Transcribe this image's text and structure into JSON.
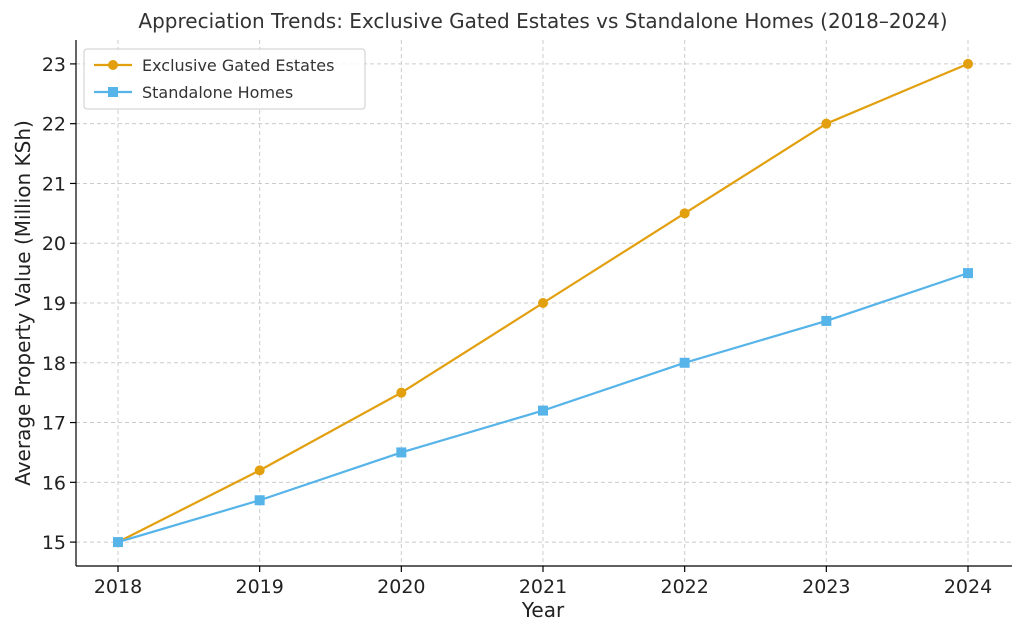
{
  "chart_data": {
    "type": "line",
    "title": "Appreciation Trends: Exclusive Gated Estates vs Standalone Homes (2018–2024)",
    "xlabel": "Year",
    "ylabel": "Average Property Value (Million KSh)",
    "categories": [
      "2018",
      "2019",
      "2020",
      "2021",
      "2022",
      "2023",
      "2024"
    ],
    "ylim": [
      14.6,
      23.4
    ],
    "yticks": [
      15,
      16,
      17,
      18,
      19,
      20,
      21,
      22,
      23
    ],
    "grid": true,
    "legend_position": "top-left",
    "series": [
      {
        "name": "Exclusive Gated Estates",
        "color": "#E29F0E",
        "marker": "circle",
        "values": [
          15.0,
          16.2,
          17.5,
          19.0,
          20.5,
          22.0,
          23.0
        ]
      },
      {
        "name": "Standalone Homes",
        "color": "#56B4E9",
        "marker": "square",
        "values": [
          15.0,
          15.7,
          16.5,
          17.2,
          18.0,
          18.7,
          19.5
        ]
      }
    ]
  }
}
